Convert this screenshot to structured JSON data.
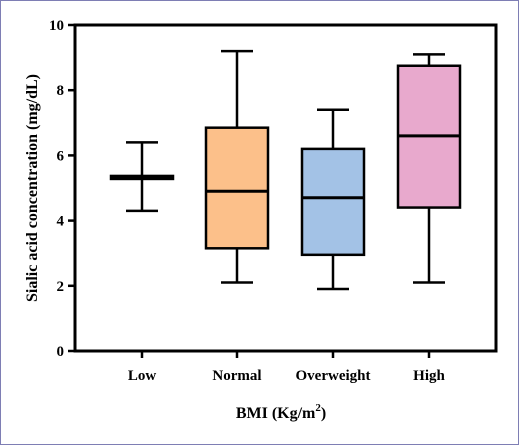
{
  "chart_data": {
    "type": "box",
    "xlabel": "BMI (Kg/m",
    "xlabel_sup": "2",
    "xlabel_close": ")",
    "ylabel": "Sialic acid concentration (mg/dL)",
    "ylim": [
      0,
      10
    ],
    "yticks": [
      0,
      2,
      4,
      6,
      8,
      10
    ],
    "categories": [
      "Low",
      "Normal",
      "Overweight",
      "High"
    ],
    "boxes": [
      {
        "category": "Low",
        "min": 4.3,
        "q1": 5.33,
        "median": 5.35,
        "q3": 5.37,
        "max": 6.4,
        "color": "#000000"
      },
      {
        "category": "Normal",
        "min": 2.1,
        "q1": 3.15,
        "median": 4.9,
        "q3": 6.85,
        "max": 9.2,
        "color": "#fcc08a"
      },
      {
        "category": "Overweight",
        "min": 1.9,
        "q1": 2.95,
        "median": 4.7,
        "q3": 6.2,
        "max": 7.4,
        "color": "#a3c2e6"
      },
      {
        "category": "High",
        "min": 2.1,
        "q1": 4.4,
        "median": 6.6,
        "q3": 8.75,
        "max": 9.1,
        "color": "#e8a9cd"
      }
    ],
    "grid": false,
    "legend": "none"
  }
}
